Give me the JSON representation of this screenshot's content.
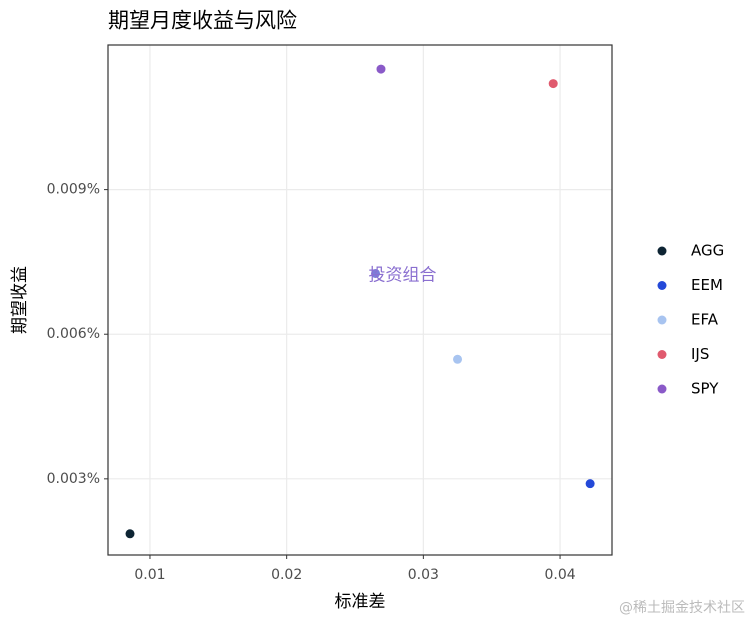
{
  "chart_data": {
    "type": "scatter",
    "title": "期望月度收益与风险",
    "x_label": "标准差",
    "y_label": "期望收益",
    "xlim": [
      0.00693,
      0.0438
    ],
    "ylim": [
      0.00142,
      0.012
    ],
    "xticks": [
      0.01,
      0.02,
      0.03,
      0.04
    ],
    "yticks": [
      {
        "value": 0.003,
        "label": "0.003%"
      },
      {
        "value": 0.006,
        "label": "0.006%"
      },
      {
        "value": 0.009,
        "label": "0.009%"
      }
    ],
    "grid": true,
    "legend": "right",
    "series": [
      {
        "name": "AGG",
        "color": "#0d2433",
        "x": [
          0.00854
        ],
        "values": [
          0.00186
        ]
      },
      {
        "name": "EEM",
        "color": "#2449d8",
        "x": [
          0.0422
        ],
        "values": [
          0.0029
        ]
      },
      {
        "name": "EFA",
        "color": "#a8c4f0",
        "x": [
          0.0325
        ],
        "values": [
          0.00548
        ]
      },
      {
        "name": "IJS",
        "color": "#e05a6e",
        "x": [
          0.0395
        ],
        "values": [
          0.0112
        ]
      },
      {
        "name": "SPY",
        "color": "#8a5ac8",
        "x": [
          0.0269
        ],
        "values": [
          0.0115
        ]
      }
    ],
    "annotation": {
      "text": "投资组合",
      "x": 0.0265,
      "y": 0.00726,
      "color": "#8a6fd0",
      "point_color": "#7b7fd9"
    },
    "watermark": "@稀土掘金技术社区"
  }
}
